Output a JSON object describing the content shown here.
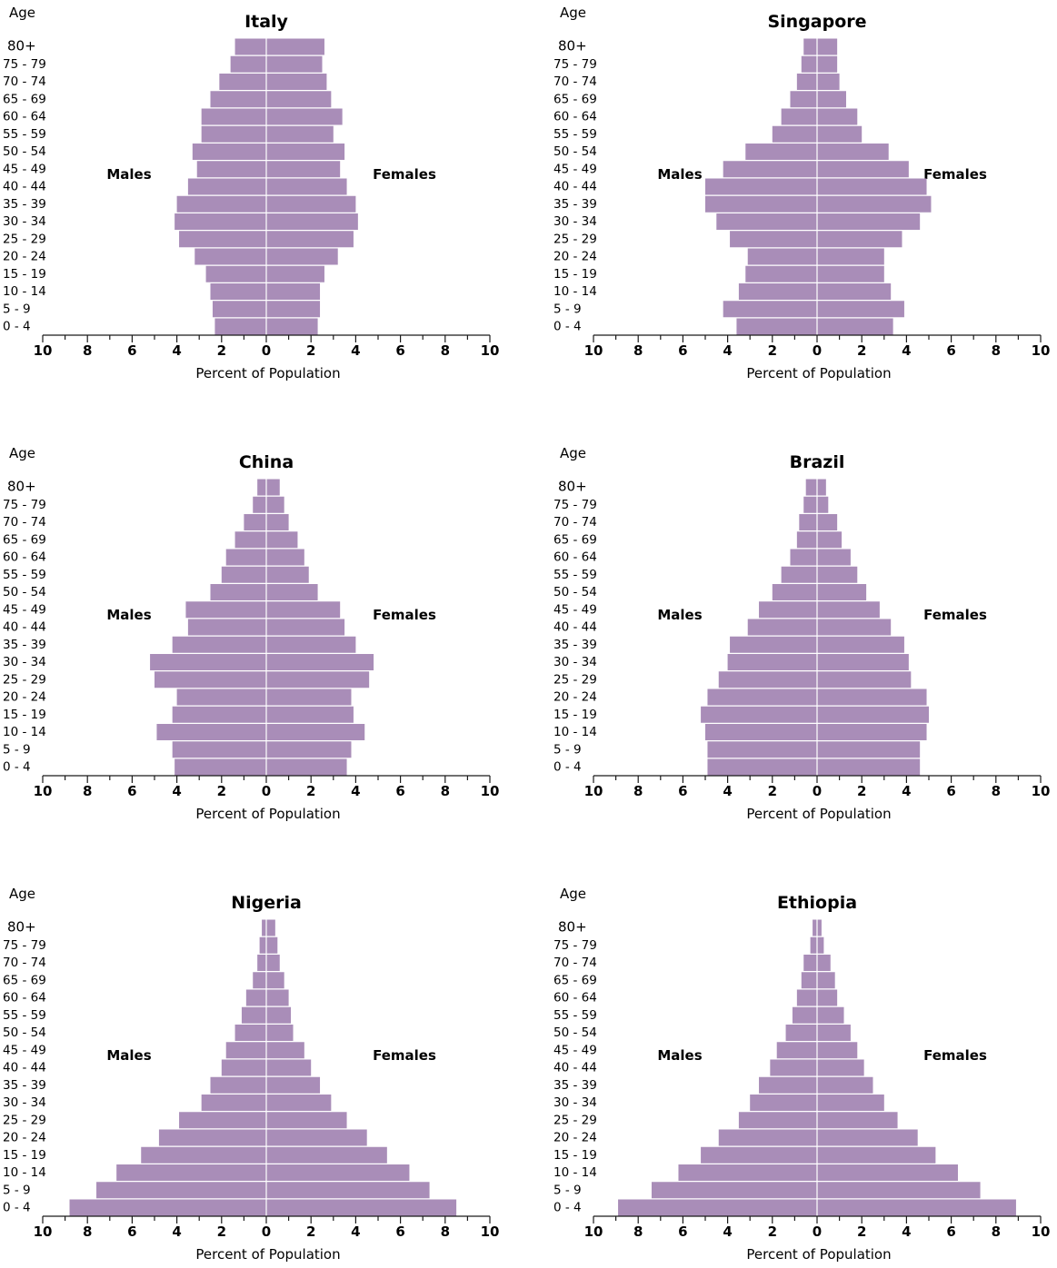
{
  "chart_data": [
    {
      "type": "bar",
      "title": "Italy",
      "age_label": "Age",
      "xlabel": "Percent of Population",
      "left_label": "Males",
      "right_label": "Females",
      "xlim": [
        -10,
        10
      ],
      "xticks": [
        "10",
        "8",
        "6",
        "4",
        "2",
        "0",
        "2",
        "4",
        "6",
        "8",
        "10"
      ],
      "categories": [
        "0 - 4",
        "5 - 9",
        "10 - 14",
        "15 - 19",
        "20 - 24",
        "25 - 29",
        "30 - 34",
        "35 - 39",
        "40 - 44",
        "45 - 49",
        "50 - 54",
        "55 - 59",
        "60 - 64",
        "65 - 69",
        "70 - 74",
        "75 - 79",
        "80+"
      ],
      "series": [
        {
          "name": "Males",
          "values": [
            2.3,
            2.4,
            2.5,
            2.7,
            3.2,
            3.9,
            4.1,
            4.0,
            3.5,
            3.1,
            3.3,
            2.9,
            2.9,
            2.5,
            2.1,
            1.6,
            1.4
          ]
        },
        {
          "name": "Females",
          "values": [
            2.3,
            2.4,
            2.4,
            2.6,
            3.2,
            3.9,
            4.1,
            4.0,
            3.6,
            3.3,
            3.5,
            3.0,
            3.4,
            2.9,
            2.7,
            2.5,
            2.6
          ]
        }
      ],
      "bar_color": "#a98db8"
    },
    {
      "type": "bar",
      "title": "Singapore",
      "age_label": "Age",
      "xlabel": "Percent of Population",
      "left_label": "Males",
      "right_label": "Females",
      "xlim": [
        -10,
        10
      ],
      "xticks": [
        "10",
        "8",
        "6",
        "4",
        "2",
        "0",
        "2",
        "4",
        "6",
        "8",
        "10"
      ],
      "categories": [
        "0 - 4",
        "5 - 9",
        "10 - 14",
        "15 - 19",
        "20 - 24",
        "25 - 29",
        "30 - 34",
        "35 - 39",
        "40 - 44",
        "45 - 49",
        "50 - 54",
        "55 - 59",
        "60 - 64",
        "65 - 69",
        "70 - 74",
        "75 - 79",
        "80+"
      ],
      "series": [
        {
          "name": "Males",
          "values": [
            3.6,
            4.2,
            3.5,
            3.2,
            3.1,
            3.9,
            4.5,
            5.0,
            5.0,
            4.2,
            3.2,
            2.0,
            1.6,
            1.2,
            0.9,
            0.7,
            0.6
          ]
        },
        {
          "name": "Females",
          "values": [
            3.4,
            3.9,
            3.3,
            3.0,
            3.0,
            3.8,
            4.6,
            5.1,
            4.9,
            4.1,
            3.2,
            2.0,
            1.8,
            1.3,
            1.0,
            0.9,
            0.9
          ]
        }
      ],
      "bar_color": "#a98db8"
    },
    {
      "type": "bar",
      "title": "China",
      "age_label": "Age",
      "xlabel": "Percent of Population",
      "left_label": "Males",
      "right_label": "Females",
      "xlim": [
        -10,
        10
      ],
      "xticks": [
        "10",
        "8",
        "6",
        "4",
        "2",
        "0",
        "2",
        "4",
        "6",
        "8",
        "10"
      ],
      "categories": [
        "0 - 4",
        "5 - 9",
        "10 - 14",
        "15 - 19",
        "20 - 24",
        "25 - 29",
        "30 - 34",
        "35 - 39",
        "40 - 44",
        "45 - 49",
        "50 - 54",
        "55 - 59",
        "60 - 64",
        "65 - 69",
        "70 - 74",
        "75 - 79",
        "80+"
      ],
      "series": [
        {
          "name": "Males",
          "values": [
            4.1,
            4.2,
            4.9,
            4.2,
            4.0,
            5.0,
            5.2,
            4.2,
            3.5,
            3.6,
            2.5,
            2.0,
            1.8,
            1.4,
            1.0,
            0.6,
            0.4
          ]
        },
        {
          "name": "Females",
          "values": [
            3.6,
            3.8,
            4.4,
            3.9,
            3.8,
            4.6,
            4.8,
            4.0,
            3.5,
            3.3,
            2.3,
            1.9,
            1.7,
            1.4,
            1.0,
            0.8,
            0.6
          ]
        }
      ],
      "bar_color": "#a98db8"
    },
    {
      "type": "bar",
      "title": "Brazil",
      "age_label": "Age",
      "xlabel": "Percent of Population",
      "left_label": "Males",
      "right_label": "Females",
      "xlim": [
        -10,
        10
      ],
      "xticks": [
        "10",
        "8",
        "6",
        "4",
        "2",
        "0",
        "2",
        "4",
        "6",
        "8",
        "10"
      ],
      "categories": [
        "0 - 4",
        "5 - 9",
        "10 - 14",
        "15 - 19",
        "20 - 24",
        "25 - 29",
        "30 - 34",
        "35 - 39",
        "40 - 44",
        "45 - 49",
        "50 - 54",
        "55 - 59",
        "60 - 64",
        "65 - 69",
        "70 - 74",
        "75 - 79",
        "80+"
      ],
      "series": [
        {
          "name": "Males",
          "values": [
            4.9,
            4.9,
            5.0,
            5.2,
            4.9,
            4.4,
            4.0,
            3.9,
            3.1,
            2.6,
            2.0,
            1.6,
            1.2,
            0.9,
            0.8,
            0.6,
            0.5
          ]
        },
        {
          "name": "Females",
          "values": [
            4.6,
            4.6,
            4.9,
            5.0,
            4.9,
            4.2,
            4.1,
            3.9,
            3.3,
            2.8,
            2.2,
            1.8,
            1.5,
            1.1,
            0.9,
            0.5,
            0.4
          ]
        }
      ],
      "bar_color": "#a98db8"
    },
    {
      "type": "bar",
      "title": "Nigeria",
      "age_label": "Age",
      "xlabel": "Percent of Population",
      "left_label": "Males",
      "right_label": "Females",
      "xlim": [
        -10,
        10
      ],
      "xticks": [
        "10",
        "8",
        "6",
        "4",
        "2",
        "0",
        "2",
        "4",
        "6",
        "8",
        "10"
      ],
      "categories": [
        "0 - 4",
        "5 - 9",
        "10 - 14",
        "15 - 19",
        "20 - 24",
        "25 - 29",
        "30 - 34",
        "35 - 39",
        "40 - 44",
        "45 - 49",
        "50 - 54",
        "55 - 59",
        "60 - 64",
        "65 - 69",
        "70 - 74",
        "75 - 79",
        "80+"
      ],
      "series": [
        {
          "name": "Males",
          "values": [
            8.8,
            7.6,
            6.7,
            5.6,
            4.8,
            3.9,
            2.9,
            2.5,
            2.0,
            1.8,
            1.4,
            1.1,
            0.9,
            0.6,
            0.4,
            0.3,
            0.2
          ]
        },
        {
          "name": "Females",
          "values": [
            8.5,
            7.3,
            6.4,
            5.4,
            4.5,
            3.6,
            2.9,
            2.4,
            2.0,
            1.7,
            1.2,
            1.1,
            1.0,
            0.8,
            0.6,
            0.5,
            0.4
          ]
        }
      ],
      "bar_color": "#a98db8"
    },
    {
      "type": "bar",
      "title": "Ethiopia",
      "age_label": "Age",
      "xlabel": "Percent of Population",
      "left_label": "Males",
      "right_label": "Females",
      "xlim": [
        -10,
        10
      ],
      "xticks": [
        "10",
        "8",
        "6",
        "4",
        "2",
        "0",
        "2",
        "4",
        "6",
        "8",
        "10"
      ],
      "categories": [
        "0 - 4",
        "5 - 9",
        "10 - 14",
        "15 - 19",
        "20 - 24",
        "25 - 29",
        "30 - 34",
        "35 - 39",
        "40 - 44",
        "45 - 49",
        "50 - 54",
        "55 - 59",
        "60 - 64",
        "65 - 69",
        "70 - 74",
        "75 - 79",
        "80+"
      ],
      "series": [
        {
          "name": "Males",
          "values": [
            8.9,
            7.4,
            6.2,
            5.2,
            4.4,
            3.5,
            3.0,
            2.6,
            2.1,
            1.8,
            1.4,
            1.1,
            0.9,
            0.7,
            0.6,
            0.3,
            0.2
          ]
        },
        {
          "name": "Females",
          "values": [
            8.9,
            7.3,
            6.3,
            5.3,
            4.5,
            3.6,
            3.0,
            2.5,
            2.1,
            1.8,
            1.5,
            1.2,
            0.9,
            0.8,
            0.6,
            0.3,
            0.2
          ]
        }
      ],
      "bar_color": "#a98db8"
    }
  ]
}
